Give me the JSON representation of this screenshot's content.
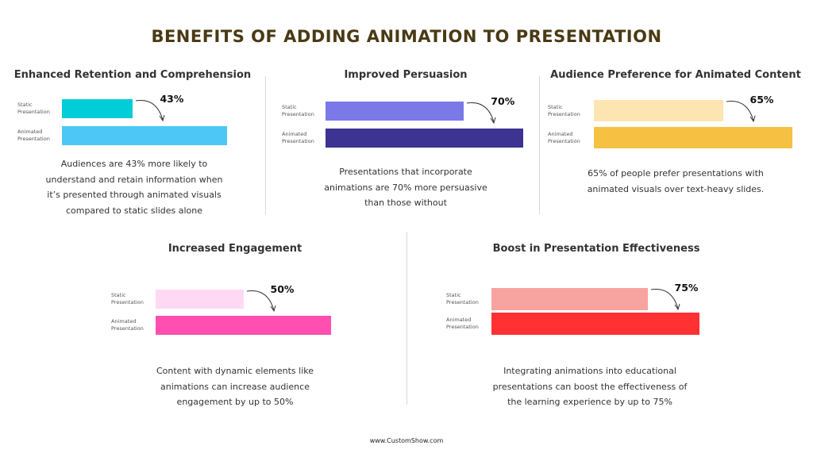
{
  "title": "BENEFITS OF ADDING ANIMATION TO PRESENTATION",
  "bar_labels": {
    "static": "Static\nPresentation",
    "animated": "Animated\nPresentation"
  },
  "chart_data": [
    {
      "type": "bar",
      "title": "Enhanced Retention and Comprehension",
      "categories": [
        "Static Presentation",
        "Animated Presentation"
      ],
      "values": [
        43,
        100
      ],
      "annotation": "43%",
      "colors": [
        "#00cdd8",
        "#4cc7f6"
      ],
      "description": "Audiences are 43% more likely to understand and retain information when it’s presented through animated visuals compared to static slides alone"
    },
    {
      "type": "bar",
      "title": "Improved Persuasion",
      "categories": [
        "Static Presentation",
        "Animated Presentation"
      ],
      "values": [
        70,
        100
      ],
      "annotation": "70%",
      "colors": [
        "#7b78e8",
        "#3c3392"
      ],
      "description": "Presentations that incorporate animations are 70% more persuasive than those without"
    },
    {
      "type": "bar",
      "title": "Audience Preference for Animated Content",
      "categories": [
        "Static Presentation",
        "Animated Presentation"
      ],
      "values": [
        65,
        100
      ],
      "annotation": "65%",
      "colors": [
        "#fde5b2",
        "#f6c143"
      ],
      "description": "65% of people prefer presentations with animated visuals over text-heavy slides."
    },
    {
      "type": "bar",
      "title": "Increased Engagement",
      "categories": [
        "Static Presentation",
        "Animated Presentation"
      ],
      "values": [
        50,
        100
      ],
      "annotation": "50%",
      "colors": [
        "#ffd9f3",
        "#ff4fb0"
      ],
      "description": "Content with dynamic elements like animations can increase audience engagement by up to 50%"
    },
    {
      "type": "bar",
      "title": "Boost in Presentation Effectiveness",
      "categories": [
        "Static Presentation",
        "Animated Presentation"
      ],
      "values": [
        75,
        100
      ],
      "annotation": "75%",
      "colors": [
        "#f7a4a1",
        "#ff3133"
      ],
      "description": "Integrating animations into educational presentations can boost the effectiveness of the learning experience by up to 75%"
    }
  ],
  "footer": "www.CustomShow.com"
}
